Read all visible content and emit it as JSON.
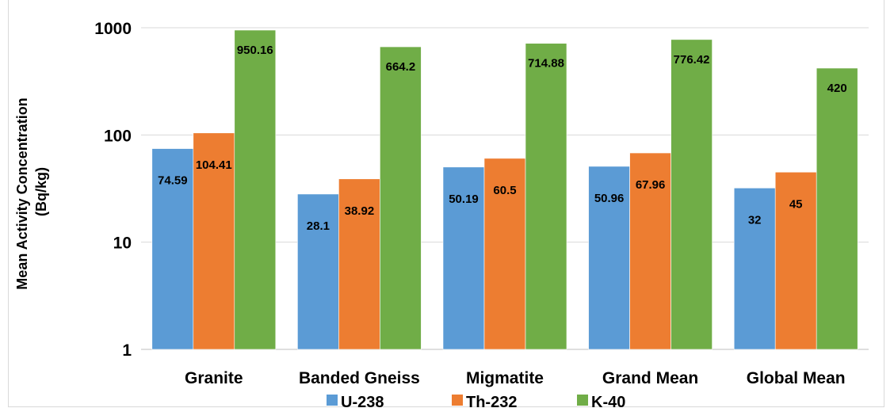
{
  "chart_data": {
    "type": "bar",
    "title": "",
    "ylabel_lines": [
      "Mean Activity Concentration",
      "(Bq/kg)"
    ],
    "xlabel": "",
    "yscale": "log",
    "ylim": [
      1,
      1000
    ],
    "yticks": [
      1,
      10,
      100,
      1000
    ],
    "ytick_labels": [
      "1",
      "10",
      "100",
      "1000"
    ],
    "grid": true,
    "legend_position": "bottom",
    "categories": [
      "Granite",
      "Banded Gneiss",
      "Migmatite",
      "Grand Mean",
      "Global Mean"
    ],
    "series": [
      {
        "name": "U-238",
        "color": "#5b9bd5",
        "values": [
          74.59,
          28.1,
          50.19,
          50.96,
          32
        ],
        "labels": [
          "74.59",
          "28.1",
          "50.19",
          "50.96",
          "32"
        ]
      },
      {
        "name": "Th-232",
        "color": "#ed7d31",
        "values": [
          104.41,
          38.92,
          60.5,
          67.96,
          45
        ],
        "labels": [
          "104.41",
          "38.92",
          "60.5",
          "67.96",
          "45"
        ]
      },
      {
        "name": "K-40",
        "color": "#70ad47",
        "values": [
          950.16,
          664.2,
          714.88,
          776.42,
          420
        ],
        "labels": [
          "950.16",
          "664.2",
          "714.88",
          "776.42",
          "420"
        ]
      }
    ]
  }
}
